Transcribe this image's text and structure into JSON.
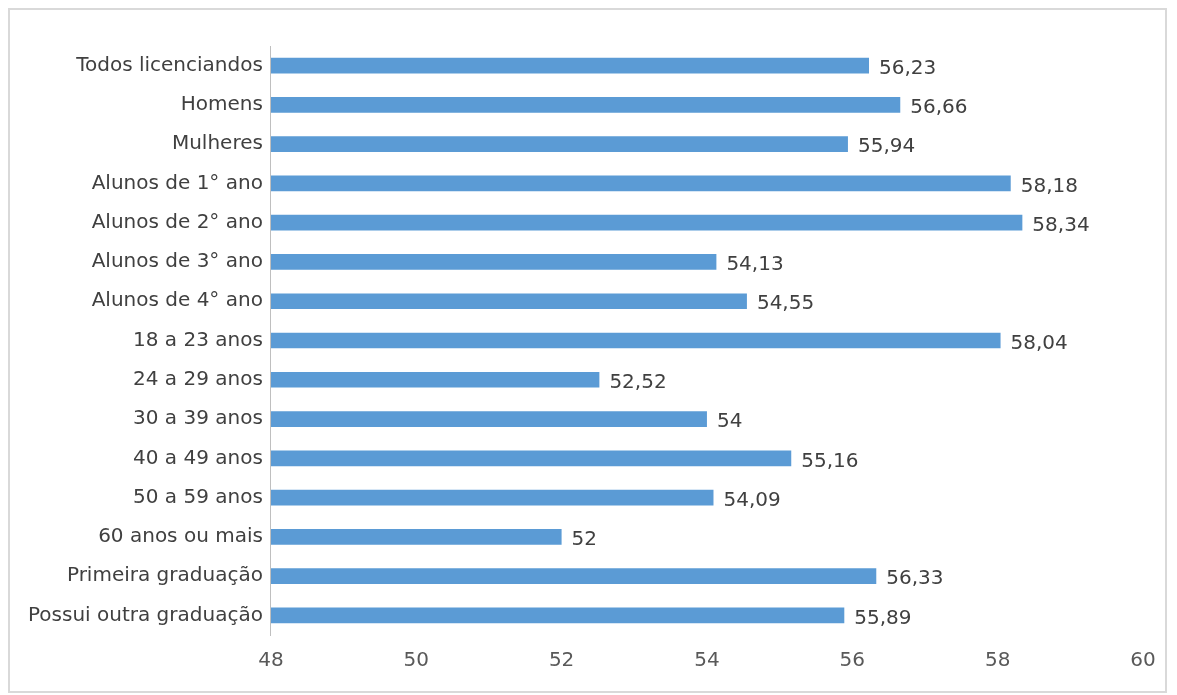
{
  "chart_data": {
    "type": "bar",
    "orientation": "horizontal",
    "categories": [
      "Todos licenciandos",
      "Homens",
      "Mulheres",
      "Alunos de 1° ano",
      "Alunos de 2° ano",
      "Alunos de 3° ano",
      "Alunos de 4° ano",
      "18 a 23 anos",
      "24 a 29 anos",
      "30 a 39 anos",
      "40 a 49 anos",
      "50 a 59 anos",
      "60 anos ou mais",
      "Primeira graduação",
      "Possui outra graduação"
    ],
    "values": [
      56.23,
      56.66,
      55.94,
      58.18,
      58.34,
      54.13,
      54.55,
      58.04,
      52.52,
      54,
      55.16,
      54.09,
      52,
      56.33,
      55.89
    ],
    "value_labels": [
      "56,23",
      "56,66",
      "55,94",
      "58,18",
      "58,34",
      "54,13",
      "54,55",
      "58,04",
      "52,52",
      "54",
      "55,16",
      "54,09",
      "52",
      "56,33",
      "55,89"
    ],
    "color": "#5b9bd5",
    "xlim": [
      48,
      60
    ],
    "xticks": [
      48,
      50,
      52,
      54,
      56,
      58,
      60
    ],
    "grid": false,
    "legend": false
  }
}
